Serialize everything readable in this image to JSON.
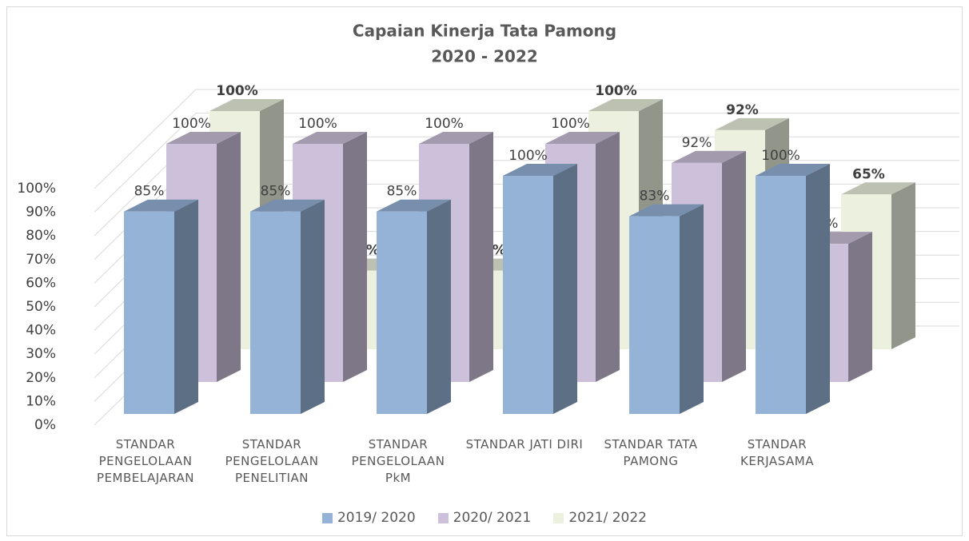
{
  "chart_data": {
    "type": "bar3d",
    "title": "Capaian Kinerja Tata Pamong",
    "subtitle": "2020 - 2022",
    "categories": [
      "STANDAR PENGELOLAAN PEMBELAJARAN",
      "STANDAR PENGELOLAAN PENELITIAN",
      "STANDAR PENGELOLAAN PkM",
      "STANDAR JATI DIRI",
      "STANDAR TATA PAMONG",
      "STANDAR KERJASAMA"
    ],
    "series": [
      {
        "name": "2019/ 2020",
        "color": "#95b3d7",
        "values": [
          85,
          85,
          85,
          100,
          83,
          100
        ],
        "value_labels": [
          "85%",
          "85%",
          "85%",
          "100%",
          "83%",
          "100%"
        ]
      },
      {
        "name": "2020/ 2021",
        "color": "#ccc0da",
        "values": [
          100,
          100,
          100,
          100,
          92,
          58
        ],
        "value_labels": [
          "100%",
          "100%",
          "100%",
          "100%",
          "92%",
          "58%"
        ]
      },
      {
        "name": "2021/ 2022",
        "color": "#ebf1de",
        "values": [
          100,
          33,
          33,
          100,
          92,
          65
        ],
        "value_labels": [
          "100%",
          "33%",
          "33%",
          "100%",
          "92%",
          "65%"
        ]
      }
    ],
    "ylim": [
      0,
      100
    ],
    "yticks": [
      {
        "value": 0,
        "label": "0%"
      },
      {
        "value": 10,
        "label": "10%"
      },
      {
        "value": 20,
        "label": "20%"
      },
      {
        "value": 30,
        "label": "30%"
      },
      {
        "value": 40,
        "label": "40%"
      },
      {
        "value": 50,
        "label": "50%"
      },
      {
        "value": 60,
        "label": "60%"
      },
      {
        "value": 70,
        "label": "70%"
      },
      {
        "value": 80,
        "label": "80%"
      },
      {
        "value": 90,
        "label": "90%"
      },
      {
        "value": 100,
        "label": "100%"
      }
    ],
    "grid": true,
    "legend": "bottom"
  }
}
